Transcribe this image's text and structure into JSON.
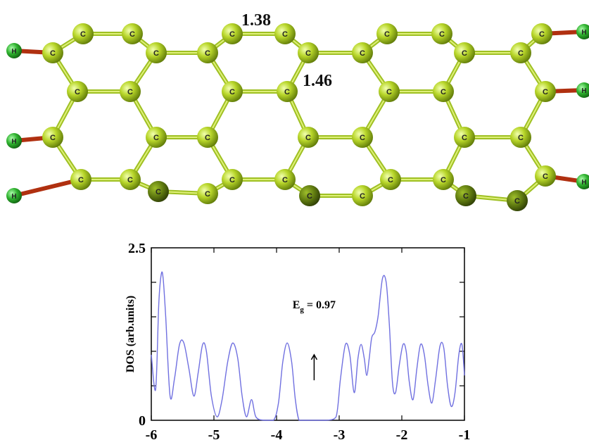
{
  "molecule": {
    "atom_symbol": "C",
    "end_symbol": "H",
    "bond_labels": [
      "1.38",
      "1.46"
    ],
    "colors": {
      "carbon": "#b8d62a",
      "carbon_dark": "#5f7a08",
      "hydrogen": "#2fb22f",
      "bond": "#9fc023"
    }
  },
  "chart_data": {
    "type": "line",
    "ylabel": "DOS (arb.units)",
    "xlabel": "",
    "xlim": [
      -6,
      -1
    ],
    "ylim": [
      0,
      2.5
    ],
    "x_ticks": [
      "-6",
      "-5",
      "-4",
      "-3",
      "-2",
      "-1"
    ],
    "y_ticks": [
      "0",
      "2.5"
    ],
    "annotation": {
      "label": "E",
      "subscript": "g",
      "text": " = 0.97",
      "x": -3.4,
      "arrow_from": 0.58,
      "arrow_to": 0.95
    },
    "line_color": "#7070e0",
    "series": [
      {
        "x": [
          -6.0,
          -5.93,
          -5.88,
          -5.84,
          -5.81,
          -5.77,
          -5.7,
          -5.63,
          -5.55,
          -5.48,
          -5.4,
          -5.32,
          -5.25,
          -5.18,
          -5.12,
          -5.04,
          -4.95,
          -4.87,
          -4.78,
          -4.7,
          -4.62,
          -4.55,
          -4.48,
          -4.4,
          -4.33,
          -4.2,
          -4.05,
          -3.97,
          -3.9,
          -3.83,
          -3.76,
          -3.7,
          -3.64,
          -3.55,
          -3.4,
          -3.2,
          -3.05,
          -2.98,
          -2.9,
          -2.83,
          -2.76,
          -2.7,
          -2.65,
          -2.6,
          -2.56,
          -2.52,
          -2.48,
          -2.43,
          -2.38,
          -2.31,
          -2.25,
          -2.2,
          -2.15,
          -2.1,
          -2.04,
          -1.98,
          -1.93,
          -1.88,
          -1.82,
          -1.76,
          -1.7,
          -1.64,
          -1.58,
          -1.52,
          -1.46,
          -1.39,
          -1.33,
          -1.27,
          -1.21,
          -1.15,
          -1.09,
          -1.04,
          -1.0
        ],
        "y": [
          0.95,
          0.45,
          1.7,
          2.12,
          2.05,
          1.5,
          0.35,
          0.6,
          1.1,
          1.12,
          0.75,
          0.35,
          0.7,
          1.1,
          1.0,
          0.35,
          0.05,
          0.3,
          0.85,
          1.12,
          0.9,
          0.35,
          0.05,
          0.3,
          0.05,
          0.0,
          0.0,
          0.25,
          0.85,
          1.12,
          0.85,
          0.3,
          0.0,
          0.0,
          0.0,
          0.0,
          0.05,
          0.6,
          1.1,
          0.95,
          0.4,
          0.9,
          1.1,
          0.9,
          0.65,
          0.9,
          1.2,
          1.28,
          1.5,
          2.05,
          2.0,
          1.4,
          0.55,
          0.4,
          0.8,
          1.1,
          1.0,
          0.55,
          0.3,
          0.75,
          1.1,
          0.95,
          0.5,
          0.25,
          0.6,
          1.08,
          1.05,
          0.5,
          0.2,
          0.4,
          0.95,
          1.1,
          0.65
        ]
      }
    ]
  }
}
